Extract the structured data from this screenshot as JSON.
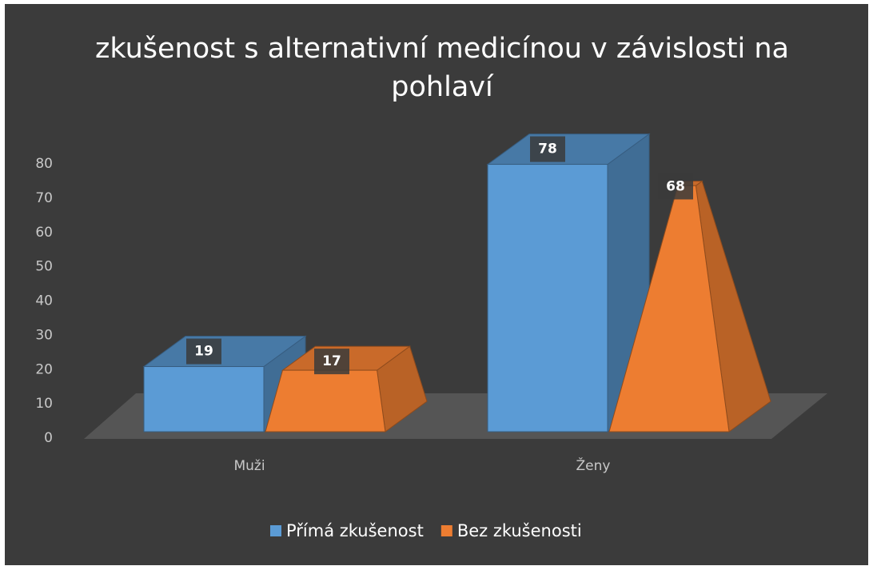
{
  "chart_data": {
    "type": "bar3d",
    "title": "zkušenost s alternativní medicínou v závislosti na pohlaví",
    "categories": [
      "Muži",
      "Ženy"
    ],
    "series": [
      {
        "name": "Přímá zkušenost",
        "color": "#5b9bd5",
        "shape": "box",
        "values": [
          19,
          78
        ]
      },
      {
        "name": "Bez zkušenosti",
        "color": "#ed7d31",
        "shape": "pyramid",
        "values": [
          17,
          68
        ]
      }
    ],
    "ylim": [
      0,
      80
    ],
    "yticks": [
      0,
      10,
      20,
      30,
      40,
      50,
      60,
      70,
      80
    ],
    "legend": "bottom"
  }
}
